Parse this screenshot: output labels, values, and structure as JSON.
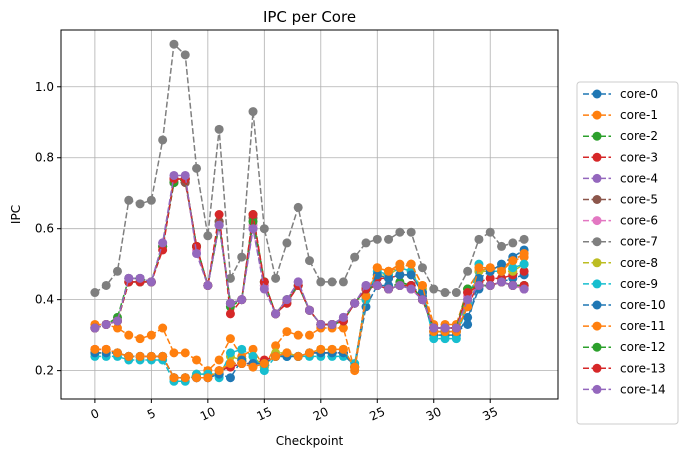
{
  "chart_data": {
    "type": "line",
    "title": "IPC per Core",
    "xlabel": "Checkpoint",
    "ylabel": "IPC",
    "xlim": [
      -3,
      41
    ],
    "ylim": [
      0.12,
      1.16
    ],
    "xticks": [
      0,
      5,
      10,
      15,
      20,
      25,
      30,
      35
    ],
    "yticks": [
      0.2,
      0.4,
      0.6,
      0.8,
      1.0
    ],
    "ytick_labels": [
      "0.2",
      "0.4",
      "0.6",
      "0.8",
      "1.0"
    ],
    "grid": true,
    "legend_position": "right-outside",
    "line_style": "dashed",
    "marker": "circle",
    "x": [
      0,
      1,
      2,
      3,
      4,
      5,
      6,
      7,
      8,
      9,
      10,
      11,
      12,
      13,
      14,
      15,
      16,
      17,
      18,
      19,
      20,
      21,
      22,
      23,
      24,
      25,
      26,
      27,
      28,
      29,
      30,
      31,
      32,
      33,
      34,
      35,
      36,
      37,
      38
    ],
    "series": [
      {
        "name": "core-0",
        "color": "#1f77b4",
        "values": [
          0.25,
          0.25,
          0.25,
          0.24,
          0.24,
          0.24,
          0.24,
          0.18,
          0.18,
          0.18,
          0.18,
          0.19,
          0.22,
          0.22,
          0.22,
          0.22,
          0.24,
          0.24,
          0.24,
          0.25,
          0.25,
          0.25,
          0.25,
          0.21,
          0.38,
          0.44,
          0.44,
          0.44,
          0.44,
          0.41,
          0.3,
          0.3,
          0.3,
          0.35,
          0.43,
          0.44,
          0.45,
          0.46,
          0.47
        ]
      },
      {
        "name": "core-1",
        "color": "#ff7f0e",
        "values": [
          0.33,
          0.33,
          0.32,
          0.3,
          0.29,
          0.3,
          0.32,
          0.25,
          0.25,
          0.23,
          0.2,
          0.23,
          0.29,
          0.24,
          0.26,
          0.21,
          0.27,
          0.31,
          0.3,
          0.3,
          0.32,
          0.32,
          0.32,
          0.2,
          0.4,
          0.49,
          0.48,
          0.5,
          0.5,
          0.44,
          0.33,
          0.33,
          0.33,
          0.43,
          0.48,
          0.49,
          0.49,
          0.51,
          0.52
        ]
      },
      {
        "name": "core-2",
        "color": "#2ca02c",
        "values": [
          0.32,
          0.33,
          0.35,
          0.46,
          0.46,
          0.45,
          0.55,
          0.74,
          0.74,
          0.55,
          0.44,
          0.62,
          0.38,
          0.4,
          0.64,
          0.45,
          0.36,
          0.4,
          0.44,
          0.37,
          0.33,
          0.33,
          0.34,
          0.39,
          0.43,
          0.44,
          0.43,
          0.45,
          0.44,
          0.4,
          0.32,
          0.32,
          0.32,
          0.43,
          0.44,
          0.44,
          0.45,
          0.44,
          0.44
        ]
      },
      {
        "name": "core-3",
        "color": "#d62728",
        "values": [
          0.26,
          0.26,
          0.25,
          0.24,
          0.24,
          0.24,
          0.24,
          0.18,
          0.18,
          0.18,
          0.18,
          0.2,
          0.21,
          0.22,
          0.22,
          0.23,
          0.24,
          0.25,
          0.24,
          0.25,
          0.25,
          0.25,
          0.25,
          0.21,
          0.41,
          0.46,
          0.46,
          0.47,
          0.47,
          0.42,
          0.31,
          0.31,
          0.31,
          0.38,
          0.45,
          0.46,
          0.46,
          0.47,
          0.48
        ]
      },
      {
        "name": "core-4",
        "color": "#9467bd",
        "values": [
          0.32,
          0.33,
          0.34,
          0.46,
          0.46,
          0.45,
          0.56,
          0.74,
          0.74,
          0.55,
          0.44,
          0.61,
          0.39,
          0.4,
          0.6,
          0.44,
          0.36,
          0.4,
          0.45,
          0.37,
          0.33,
          0.33,
          0.35,
          0.39,
          0.44,
          0.44,
          0.43,
          0.44,
          0.43,
          0.4,
          0.32,
          0.32,
          0.32,
          0.4,
          0.44,
          0.44,
          0.45,
          0.44,
          0.43
        ]
      },
      {
        "name": "core-5",
        "color": "#8c564b",
        "values": [
          0.32,
          0.33,
          0.34,
          0.45,
          0.45,
          0.45,
          0.55,
          0.73,
          0.73,
          0.55,
          0.44,
          0.62,
          0.39,
          0.4,
          0.63,
          0.45,
          0.36,
          0.39,
          0.44,
          0.37,
          0.33,
          0.33,
          0.34,
          0.39,
          0.43,
          0.44,
          0.43,
          0.44,
          0.44,
          0.4,
          0.32,
          0.32,
          0.32,
          0.42,
          0.44,
          0.44,
          0.45,
          0.44,
          0.44
        ]
      },
      {
        "name": "core-6",
        "color": "#e377c2",
        "values": [
          0.32,
          0.33,
          0.34,
          0.45,
          0.45,
          0.45,
          0.55,
          0.73,
          0.74,
          0.54,
          0.44,
          0.61,
          0.39,
          0.4,
          0.61,
          0.44,
          0.36,
          0.4,
          0.44,
          0.37,
          0.33,
          0.33,
          0.34,
          0.39,
          0.43,
          0.44,
          0.43,
          0.44,
          0.43,
          0.4,
          0.32,
          0.32,
          0.32,
          0.41,
          0.44,
          0.44,
          0.45,
          0.44,
          0.43
        ]
      },
      {
        "name": "core-7",
        "color": "#7f7f7f",
        "values": [
          0.42,
          0.44,
          0.48,
          0.68,
          0.67,
          0.68,
          0.85,
          1.12,
          1.09,
          0.77,
          0.58,
          0.88,
          0.46,
          0.52,
          0.93,
          0.6,
          0.46,
          0.56,
          0.66,
          0.51,
          0.45,
          0.45,
          0.45,
          0.52,
          0.56,
          0.57,
          0.57,
          0.59,
          0.59,
          0.49,
          0.43,
          0.42,
          0.42,
          0.48,
          0.57,
          0.59,
          0.55,
          0.56,
          0.57
        ]
      },
      {
        "name": "core-8",
        "color": "#bcbd22",
        "values": [
          0.25,
          0.25,
          0.25,
          0.24,
          0.24,
          0.24,
          0.24,
          0.18,
          0.18,
          0.19,
          0.19,
          0.19,
          0.24,
          0.23,
          0.24,
          0.21,
          0.25,
          0.25,
          0.24,
          0.25,
          0.26,
          0.26,
          0.26,
          0.21,
          0.41,
          0.47,
          0.47,
          0.49,
          0.48,
          0.43,
          0.31,
          0.31,
          0.31,
          0.39,
          0.48,
          0.48,
          0.48,
          0.48,
          0.5
        ]
      },
      {
        "name": "core-9",
        "color": "#17becf",
        "values": [
          0.24,
          0.24,
          0.24,
          0.23,
          0.23,
          0.23,
          0.23,
          0.17,
          0.17,
          0.19,
          0.19,
          0.18,
          0.25,
          0.26,
          0.24,
          0.2,
          0.24,
          0.24,
          0.24,
          0.24,
          0.24,
          0.24,
          0.24,
          0.22,
          0.4,
          0.48,
          0.47,
          0.49,
          0.48,
          0.42,
          0.29,
          0.29,
          0.29,
          0.39,
          0.5,
          0.48,
          0.48,
          0.49,
          0.5
        ]
      },
      {
        "name": "core-10",
        "color": "#1f77b4",
        "values": [
          0.25,
          0.25,
          0.25,
          0.24,
          0.24,
          0.24,
          0.24,
          0.18,
          0.18,
          0.18,
          0.18,
          0.19,
          0.18,
          0.23,
          0.22,
          0.22,
          0.24,
          0.24,
          0.24,
          0.25,
          0.25,
          0.25,
          0.25,
          0.21,
          0.41,
          0.47,
          0.46,
          0.47,
          0.47,
          0.42,
          0.31,
          0.31,
          0.31,
          0.33,
          0.46,
          0.48,
          0.5,
          0.52,
          0.54
        ]
      },
      {
        "name": "core-11",
        "color": "#ff7f0e",
        "values": [
          0.26,
          0.26,
          0.25,
          0.24,
          0.24,
          0.24,
          0.24,
          0.18,
          0.18,
          0.18,
          0.18,
          0.2,
          0.22,
          0.22,
          0.21,
          0.22,
          0.24,
          0.25,
          0.24,
          0.25,
          0.26,
          0.26,
          0.26,
          0.21,
          0.41,
          0.49,
          0.48,
          0.49,
          0.5,
          0.44,
          0.31,
          0.31,
          0.31,
          0.38,
          0.49,
          0.49,
          0.48,
          0.51,
          0.53
        ]
      },
      {
        "name": "core-12",
        "color": "#2ca02c",
        "values": [
          0.32,
          0.33,
          0.34,
          0.45,
          0.45,
          0.45,
          0.55,
          0.73,
          0.74,
          0.55,
          0.44,
          0.61,
          0.39,
          0.4,
          0.62,
          0.45,
          0.36,
          0.4,
          0.44,
          0.37,
          0.33,
          0.33,
          0.34,
          0.39,
          0.43,
          0.44,
          0.43,
          0.44,
          0.44,
          0.4,
          0.32,
          0.32,
          0.32,
          0.43,
          0.44,
          0.44,
          0.45,
          0.44,
          0.44
        ]
      },
      {
        "name": "core-13",
        "color": "#d62728",
        "values": [
          0.32,
          0.33,
          0.34,
          0.45,
          0.45,
          0.45,
          0.54,
          0.74,
          0.74,
          0.55,
          0.44,
          0.64,
          0.36,
          0.4,
          0.64,
          0.45,
          0.36,
          0.39,
          0.44,
          0.37,
          0.33,
          0.33,
          0.34,
          0.39,
          0.43,
          0.44,
          0.43,
          0.44,
          0.44,
          0.4,
          0.32,
          0.32,
          0.32,
          0.42,
          0.44,
          0.44,
          0.45,
          0.44,
          0.44
        ]
      },
      {
        "name": "core-14",
        "color": "#9467bd",
        "values": [
          0.32,
          0.33,
          0.34,
          0.46,
          0.46,
          0.45,
          0.56,
          0.75,
          0.75,
          0.53,
          0.44,
          0.61,
          0.39,
          0.4,
          0.6,
          0.43,
          0.36,
          0.4,
          0.45,
          0.37,
          0.33,
          0.33,
          0.35,
          0.39,
          0.44,
          0.44,
          0.43,
          0.44,
          0.43,
          0.4,
          0.32,
          0.32,
          0.32,
          0.4,
          0.44,
          0.44,
          0.45,
          0.44,
          0.43
        ]
      }
    ]
  }
}
